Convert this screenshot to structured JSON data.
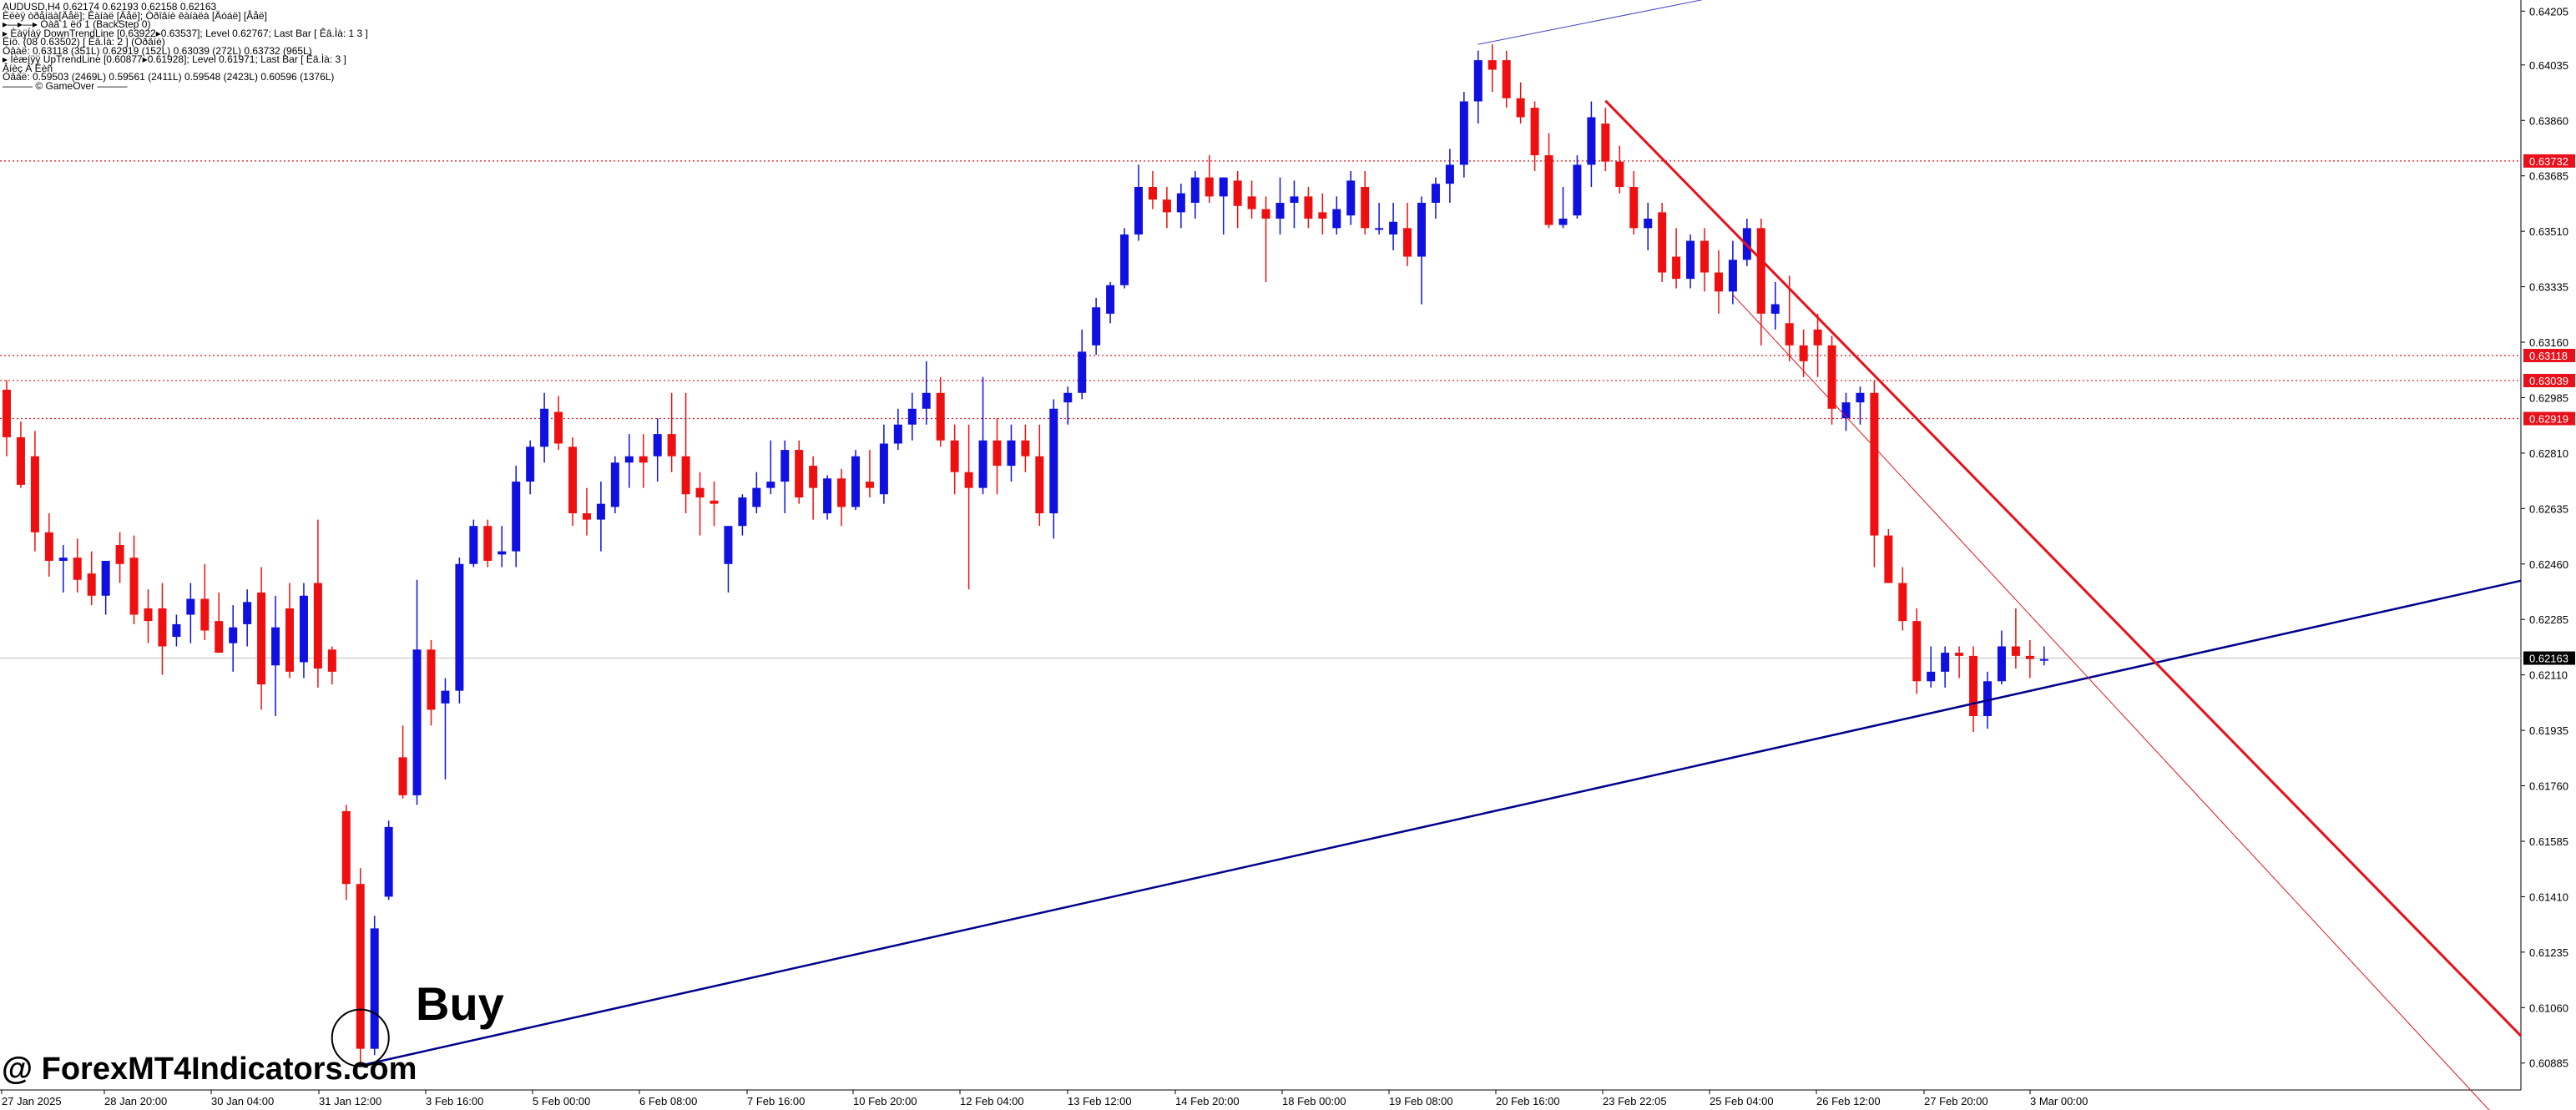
{
  "header": {
    "lines": [
      "AUDUSD,H4  0.62174 0.62193 0.62158 0.62163",
      "Èëèÿ òðåíäà[Äåë]; Êàíàë [Äåë]; Óðîâíè êàíàëà [Äóáë] [Âåë]",
      "▸—▸—▸ Óàã 1 ëö 1 (BackStep 0)",
      "▸ ÈàÿÍàÿ DownTrendLine [0.63922▸0.63537]; Level 0.62767; Last Bar [ Êâ.Ìà: 1 3 ]",
      "Ëíö. (08 0.63502) [ Êâ.Ìà: 2 ] (Óðâíè)",
      "Óâàë: 0.63118 (351L) 0.62919 (152L) 0.63039 (272L) 0.63732 (965L)",
      "▸ Íèæíÿÿ UpTrendLine [0.60877▸0.61928]; Level 0.61971; Last Bar [ Êâ.Ìà: 3 ]",
      "Âíèç Â Ëèñ",
      "Óâàë: 0.59503 (2469L) 0.59561 (2411L) 0.59548 (2423L) 0.60596 (1376L)",
      "——— © GameOver ———"
    ]
  },
  "price_axis": {
    "labels": [
      "0.64205",
      "0.64035",
      "0.63860",
      "0.63685",
      "0.63510",
      "0.63335",
      "0.63160",
      "0.62985",
      "0.62810",
      "0.62635",
      "0.62460",
      "0.62285",
      "0.62110",
      "0.61935",
      "0.61760",
      "0.61585",
      "0.61410",
      "0.61235",
      "0.61060",
      "0.60885"
    ],
    "markers": [
      {
        "value": "0.63732",
        "color": "#e8101a"
      },
      {
        "value": "0.63118",
        "color": "#e8101a"
      },
      {
        "value": "0.63039",
        "color": "#e8101a"
      },
      {
        "value": "0.62919",
        "color": "#e8101a"
      },
      {
        "value": "0.62163",
        "color": "#000000"
      }
    ]
  },
  "time_axis": {
    "labels": [
      "27 Jan 2025",
      "28 Jan 20:00",
      "30 Jan 04:00",
      "31 Jan 12:00",
      "3 Feb 16:00",
      "5 Feb 00:00",
      "6 Feb 08:00",
      "7 Feb 16:00",
      "10 Feb 20:00",
      "12 Feb 04:00",
      "13 Feb 12:00",
      "14 Feb 20:00",
      "18 Feb 00:00",
      "19 Feb 08:00",
      "20 Feb 16:00",
      "23 Feb 22:05",
      "25 Feb 04:00",
      "26 Feb 12:00",
      "27 Feb 20:00",
      "3 Mar 00:00"
    ]
  },
  "colors": {
    "bull": "#1010e0",
    "bear": "#ee1010",
    "resistance": "#e8101a",
    "support_line": "#00008b"
  },
  "annotations": {
    "buy_label": "Buy",
    "watermark": "@ ForexMT4Indicators.com"
  },
  "chart_data": {
    "type": "candlestick",
    "symbol": "AUDUSD",
    "timeframe": "H4",
    "ylim": [
      0.608,
      0.6424
    ],
    "horizontal_levels": [
      0.63732,
      0.63118,
      0.63039,
      0.62919
    ],
    "current_price": 0.62163,
    "candles": [
      {
        "o": 0.6301,
        "h": 0.6304,
        "l": 0.628,
        "c": 0.6286
      },
      {
        "o": 0.6286,
        "h": 0.6291,
        "l": 0.627,
        "c": 0.6271
      },
      {
        "o": 0.628,
        "h": 0.6288,
        "l": 0.625,
        "c": 0.6256
      },
      {
        "o": 0.6256,
        "h": 0.6262,
        "l": 0.6242,
        "c": 0.6247
      },
      {
        "o": 0.6247,
        "h": 0.6252,
        "l": 0.6237,
        "c": 0.6248
      },
      {
        "o": 0.6248,
        "h": 0.6254,
        "l": 0.6237,
        "c": 0.6241
      },
      {
        "o": 0.6243,
        "h": 0.625,
        "l": 0.6233,
        "c": 0.6236
      },
      {
        "o": 0.6236,
        "h": 0.6245,
        "l": 0.623,
        "c": 0.6247
      },
      {
        "o": 0.6252,
        "h": 0.6256,
        "l": 0.624,
        "c": 0.6246
      },
      {
        "o": 0.6248,
        "h": 0.6255,
        "l": 0.6227,
        "c": 0.623
      },
      {
        "o": 0.6232,
        "h": 0.6238,
        "l": 0.6221,
        "c": 0.6228
      },
      {
        "o": 0.6232,
        "h": 0.624,
        "l": 0.6211,
        "c": 0.622
      },
      {
        "o": 0.6223,
        "h": 0.623,
        "l": 0.622,
        "c": 0.6227
      },
      {
        "o": 0.623,
        "h": 0.624,
        "l": 0.6221,
        "c": 0.6235
      },
      {
        "o": 0.6235,
        "h": 0.6246,
        "l": 0.6222,
        "c": 0.6225
      },
      {
        "o": 0.6228,
        "h": 0.6237,
        "l": 0.6218,
        "c": 0.6218
      },
      {
        "o": 0.6221,
        "h": 0.6233,
        "l": 0.6212,
        "c": 0.6226
      },
      {
        "o": 0.6227,
        "h": 0.6238,
        "l": 0.622,
        "c": 0.6234
      },
      {
        "o": 0.6237,
        "h": 0.6245,
        "l": 0.62,
        "c": 0.6208
      },
      {
        "o": 0.6214,
        "h": 0.6236,
        "l": 0.6198,
        "c": 0.6226
      },
      {
        "o": 0.6232,
        "h": 0.624,
        "l": 0.621,
        "c": 0.6212
      },
      {
        "o": 0.6215,
        "h": 0.624,
        "l": 0.621,
        "c": 0.6236
      },
      {
        "o": 0.624,
        "h": 0.626,
        "l": 0.6207,
        "c": 0.6213
      },
      {
        "o": 0.6219,
        "h": 0.622,
        "l": 0.6208,
        "c": 0.6212
      },
      {
        "o": 0.6168,
        "h": 0.617,
        "l": 0.614,
        "c": 0.6145
      },
      {
        "o": 0.6145,
        "h": 0.615,
        "l": 0.6088,
        "c": 0.6093
      },
      {
        "o": 0.6093,
        "h": 0.6135,
        "l": 0.6091,
        "c": 0.6131
      },
      {
        "o": 0.6141,
        "h": 0.6165,
        "l": 0.614,
        "c": 0.6163
      },
      {
        "o": 0.6185,
        "h": 0.6195,
        "l": 0.6172,
        "c": 0.6173
      },
      {
        "o": 0.6173,
        "h": 0.6241,
        "l": 0.617,
        "c": 0.6219
      },
      {
        "o": 0.6219,
        "h": 0.6222,
        "l": 0.6195,
        "c": 0.62
      },
      {
        "o": 0.6202,
        "h": 0.621,
        "l": 0.6178,
        "c": 0.6206
      },
      {
        "o": 0.6206,
        "h": 0.6248,
        "l": 0.6202,
        "c": 0.6246
      },
      {
        "o": 0.6246,
        "h": 0.626,
        "l": 0.6245,
        "c": 0.6258
      },
      {
        "o": 0.6258,
        "h": 0.626,
        "l": 0.6245,
        "c": 0.6247
      },
      {
        "o": 0.6249,
        "h": 0.6258,
        "l": 0.6245,
        "c": 0.625
      },
      {
        "o": 0.625,
        "h": 0.6277,
        "l": 0.6245,
        "c": 0.6272
      },
      {
        "o": 0.6272,
        "h": 0.6285,
        "l": 0.6268,
        "c": 0.6283
      },
      {
        "o": 0.6283,
        "h": 0.63,
        "l": 0.6278,
        "c": 0.6295
      },
      {
        "o": 0.6294,
        "h": 0.6299,
        "l": 0.6282,
        "c": 0.6284
      },
      {
        "o": 0.6283,
        "h": 0.6286,
        "l": 0.6258,
        "c": 0.6262
      },
      {
        "o": 0.6262,
        "h": 0.627,
        "l": 0.6255,
        "c": 0.626
      },
      {
        "o": 0.626,
        "h": 0.6272,
        "l": 0.625,
        "c": 0.6265
      },
      {
        "o": 0.6264,
        "h": 0.628,
        "l": 0.6262,
        "c": 0.6278
      },
      {
        "o": 0.6278,
        "h": 0.6287,
        "l": 0.627,
        "c": 0.628
      },
      {
        "o": 0.628,
        "h": 0.6287,
        "l": 0.627,
        "c": 0.6278
      },
      {
        "o": 0.628,
        "h": 0.6292,
        "l": 0.6272,
        "c": 0.6287
      },
      {
        "o": 0.6287,
        "h": 0.63,
        "l": 0.6275,
        "c": 0.628
      },
      {
        "o": 0.628,
        "h": 0.63,
        "l": 0.6262,
        "c": 0.6268
      },
      {
        "o": 0.627,
        "h": 0.6275,
        "l": 0.6255,
        "c": 0.6267
      },
      {
        "o": 0.6266,
        "h": 0.6272,
        "l": 0.6258,
        "c": 0.6265
      },
      {
        "o": 0.6246,
        "h": 0.6256,
        "l": 0.6237,
        "c": 0.6258
      },
      {
        "o": 0.6258,
        "h": 0.6268,
        "l": 0.6255,
        "c": 0.6267
      },
      {
        "o": 0.6264,
        "h": 0.6275,
        "l": 0.6262,
        "c": 0.627
      },
      {
        "o": 0.627,
        "h": 0.6285,
        "l": 0.6268,
        "c": 0.6272
      },
      {
        "o": 0.6272,
        "h": 0.6285,
        "l": 0.6262,
        "c": 0.6282
      },
      {
        "o": 0.6282,
        "h": 0.6285,
        "l": 0.6265,
        "c": 0.6267
      },
      {
        "o": 0.6277,
        "h": 0.628,
        "l": 0.626,
        "c": 0.627
      },
      {
        "o": 0.6262,
        "h": 0.6274,
        "l": 0.626,
        "c": 0.6273
      },
      {
        "o": 0.6273,
        "h": 0.6276,
        "l": 0.6258,
        "c": 0.6264
      },
      {
        "o": 0.6264,
        "h": 0.6282,
        "l": 0.6263,
        "c": 0.628
      },
      {
        "o": 0.6272,
        "h": 0.6282,
        "l": 0.6267,
        "c": 0.627
      },
      {
        "o": 0.6268,
        "h": 0.629,
        "l": 0.6265,
        "c": 0.6284
      },
      {
        "o": 0.6284,
        "h": 0.6295,
        "l": 0.6282,
        "c": 0.629
      },
      {
        "o": 0.629,
        "h": 0.63,
        "l": 0.6285,
        "c": 0.6295
      },
      {
        "o": 0.6295,
        "h": 0.631,
        "l": 0.629,
        "c": 0.63
      },
      {
        "o": 0.63,
        "h": 0.6305,
        "l": 0.6283,
        "c": 0.6285
      },
      {
        "o": 0.6285,
        "h": 0.629,
        "l": 0.6268,
        "c": 0.6275
      },
      {
        "o": 0.6275,
        "h": 0.629,
        "l": 0.6238,
        "c": 0.627
      },
      {
        "o": 0.627,
        "h": 0.6305,
        "l": 0.6268,
        "c": 0.6285
      },
      {
        "o": 0.6285,
        "h": 0.6292,
        "l": 0.6268,
        "c": 0.6277
      },
      {
        "o": 0.6277,
        "h": 0.629,
        "l": 0.6272,
        "c": 0.6285
      },
      {
        "o": 0.6285,
        "h": 0.629,
        "l": 0.6275,
        "c": 0.628
      },
      {
        "o": 0.628,
        "h": 0.629,
        "l": 0.6258,
        "c": 0.6262
      },
      {
        "o": 0.6262,
        "h": 0.6298,
        "l": 0.6254,
        "c": 0.6295
      },
      {
        "o": 0.6297,
        "h": 0.6302,
        "l": 0.629,
        "c": 0.63
      },
      {
        "o": 0.63,
        "h": 0.632,
        "l": 0.6298,
        "c": 0.6313
      },
      {
        "o": 0.6315,
        "h": 0.633,
        "l": 0.6312,
        "c": 0.6327
      },
      {
        "o": 0.6325,
        "h": 0.6335,
        "l": 0.6322,
        "c": 0.6334
      },
      {
        "o": 0.6334,
        "h": 0.6352,
        "l": 0.6333,
        "c": 0.635
      },
      {
        "o": 0.635,
        "h": 0.6372,
        "l": 0.6348,
        "c": 0.6365
      },
      {
        "o": 0.6365,
        "h": 0.637,
        "l": 0.6358,
        "c": 0.6361
      },
      {
        "o": 0.6361,
        "h": 0.6365,
        "l": 0.6352,
        "c": 0.6357
      },
      {
        "o": 0.6357,
        "h": 0.6366,
        "l": 0.6352,
        "c": 0.6363
      },
      {
        "o": 0.636,
        "h": 0.637,
        "l": 0.6355,
        "c": 0.6368
      },
      {
        "o": 0.6368,
        "h": 0.6375,
        "l": 0.636,
        "c": 0.6362
      },
      {
        "o": 0.6362,
        "h": 0.6368,
        "l": 0.635,
        "c": 0.6368
      },
      {
        "o": 0.6367,
        "h": 0.637,
        "l": 0.6352,
        "c": 0.6359
      },
      {
        "o": 0.6362,
        "h": 0.6367,
        "l": 0.6355,
        "c": 0.6358
      },
      {
        "o": 0.6358,
        "h": 0.6362,
        "l": 0.6335,
        "c": 0.6355
      },
      {
        "o": 0.6355,
        "h": 0.6368,
        "l": 0.635,
        "c": 0.636
      },
      {
        "o": 0.636,
        "h": 0.6367,
        "l": 0.6352,
        "c": 0.6362
      },
      {
        "o": 0.6362,
        "h": 0.6365,
        "l": 0.6352,
        "c": 0.6355
      },
      {
        "o": 0.6357,
        "h": 0.6363,
        "l": 0.635,
        "c": 0.6355
      },
      {
        "o": 0.6352,
        "h": 0.6362,
        "l": 0.635,
        "c": 0.6358
      },
      {
        "o": 0.6356,
        "h": 0.637,
        "l": 0.6353,
        "c": 0.6367
      },
      {
        "o": 0.6365,
        "h": 0.637,
        "l": 0.635,
        "c": 0.6352
      },
      {
        "o": 0.6352,
        "h": 0.636,
        "l": 0.635,
        "c": 0.6352
      },
      {
        "o": 0.635,
        "h": 0.636,
        "l": 0.6345,
        "c": 0.6354
      },
      {
        "o": 0.6352,
        "h": 0.636,
        "l": 0.634,
        "c": 0.6343
      },
      {
        "o": 0.6343,
        "h": 0.6362,
        "l": 0.6328,
        "c": 0.636
      },
      {
        "o": 0.636,
        "h": 0.6368,
        "l": 0.6355,
        "c": 0.6366
      },
      {
        "o": 0.6366,
        "h": 0.6377,
        "l": 0.636,
        "c": 0.6372
      },
      {
        "o": 0.6372,
        "h": 0.6395,
        "l": 0.6368,
        "c": 0.6392
      },
      {
        "o": 0.6392,
        "h": 0.6408,
        "l": 0.6385,
        "c": 0.6405
      },
      {
        "o": 0.6405,
        "h": 0.641,
        "l": 0.6395,
        "c": 0.6402
      },
      {
        "o": 0.6405,
        "h": 0.6408,
        "l": 0.639,
        "c": 0.6393
      },
      {
        "o": 0.6393,
        "h": 0.6398,
        "l": 0.6385,
        "c": 0.6387
      },
      {
        "o": 0.639,
        "h": 0.6392,
        "l": 0.637,
        "c": 0.6375
      },
      {
        "o": 0.6375,
        "h": 0.6382,
        "l": 0.6352,
        "c": 0.6353
      },
      {
        "o": 0.6353,
        "h": 0.6365,
        "l": 0.6352,
        "c": 0.6355
      },
      {
        "o": 0.6356,
        "h": 0.6375,
        "l": 0.6355,
        "c": 0.6372
      },
      {
        "o": 0.6372,
        "h": 0.6392,
        "l": 0.6365,
        "c": 0.6387
      },
      {
        "o": 0.6385,
        "h": 0.639,
        "l": 0.637,
        "c": 0.6373
      },
      {
        "o": 0.6373,
        "h": 0.6378,
        "l": 0.6363,
        "c": 0.6365
      },
      {
        "o": 0.6365,
        "h": 0.637,
        "l": 0.635,
        "c": 0.6352
      },
      {
        "o": 0.6352,
        "h": 0.636,
        "l": 0.6345,
        "c": 0.6355
      },
      {
        "o": 0.6357,
        "h": 0.636,
        "l": 0.6335,
        "c": 0.6338
      },
      {
        "o": 0.6343,
        "h": 0.6352,
        "l": 0.6333,
        "c": 0.6336
      },
      {
        "o": 0.6336,
        "h": 0.635,
        "l": 0.6333,
        "c": 0.6348
      },
      {
        "o": 0.6348,
        "h": 0.6352,
        "l": 0.6332,
        "c": 0.6338
      },
      {
        "o": 0.6338,
        "h": 0.6345,
        "l": 0.6325,
        "c": 0.6332
      },
      {
        "o": 0.6332,
        "h": 0.6348,
        "l": 0.6328,
        "c": 0.6342
      },
      {
        "o": 0.6342,
        "h": 0.6355,
        "l": 0.634,
        "c": 0.6352
      },
      {
        "o": 0.6352,
        "h": 0.6355,
        "l": 0.6315,
        "c": 0.6325
      },
      {
        "o": 0.6325,
        "h": 0.6335,
        "l": 0.632,
        "c": 0.6328
      },
      {
        "o": 0.6322,
        "h": 0.6337,
        "l": 0.631,
        "c": 0.6315
      },
      {
        "o": 0.6315,
        "h": 0.632,
        "l": 0.6305,
        "c": 0.631
      },
      {
        "o": 0.632,
        "h": 0.6325,
        "l": 0.6305,
        "c": 0.6315
      },
      {
        "o": 0.6315,
        "h": 0.6318,
        "l": 0.629,
        "c": 0.6295
      },
      {
        "o": 0.6292,
        "h": 0.63,
        "l": 0.6288,
        "c": 0.6297
      },
      {
        "o": 0.6297,
        "h": 0.6302,
        "l": 0.629,
        "c": 0.63
      },
      {
        "o": 0.63,
        "h": 0.6304,
        "l": 0.6245,
        "c": 0.6255
      },
      {
        "o": 0.6255,
        "h": 0.6257,
        "l": 0.624,
        "c": 0.624
      },
      {
        "o": 0.624,
        "h": 0.6245,
        "l": 0.6225,
        "c": 0.6228
      },
      {
        "o": 0.6228,
        "h": 0.6232,
        "l": 0.6205,
        "c": 0.6209
      },
      {
        "o": 0.6209,
        "h": 0.622,
        "l": 0.6207,
        "c": 0.6212
      },
      {
        "o": 0.6212,
        "h": 0.622,
        "l": 0.6207,
        "c": 0.6218
      },
      {
        "o": 0.6218,
        "h": 0.622,
        "l": 0.621,
        "c": 0.6217
      },
      {
        "o": 0.6217,
        "h": 0.622,
        "l": 0.6193,
        "c": 0.6198
      },
      {
        "o": 0.6198,
        "h": 0.6212,
        "l": 0.6194,
        "c": 0.6209
      },
      {
        "o": 0.6209,
        "h": 0.6225,
        "l": 0.6208,
        "c": 0.622
      },
      {
        "o": 0.622,
        "h": 0.6232,
        "l": 0.6213,
        "c": 0.6217
      },
      {
        "o": 0.6217,
        "h": 0.6222,
        "l": 0.621,
        "c": 0.6216
      },
      {
        "o": 0.6216,
        "h": 0.622,
        "l": 0.6214,
        "c": 0.6216
      }
    ],
    "trendlines": [
      {
        "name": "UpTrendLine",
        "color": "#00008b",
        "from": {
          "bar": 25,
          "price": 0.60877
        },
        "to": {
          "bar": 165,
          "price": 0.6228
        }
      },
      {
        "name": "DownTrendLine",
        "color": "#e8101a",
        "from": {
          "bar": 113,
          "price": 0.63922
        },
        "to": {
          "bar": 165,
          "price": 0.6155
        }
      },
      {
        "name": "DownChannel",
        "color": "#e8101a",
        "from": {
          "bar": 122,
          "price": 0.6331
        },
        "to": {
          "bar": 165,
          "price": 0.6124
        }
      },
      {
        "name": "UpChannelTop",
        "color": "#4040c0",
        "from": {
          "bar": 104,
          "price": 0.641
        },
        "to": {
          "bar": 122,
          "price": 0.6426
        }
      }
    ]
  }
}
